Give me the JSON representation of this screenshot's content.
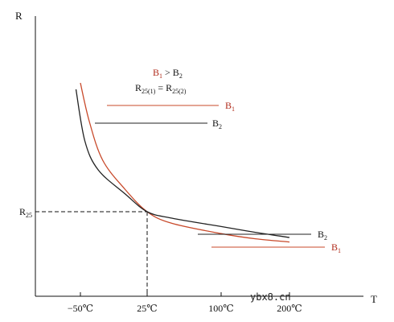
{
  "chart_data": {
    "type": "line",
    "xlabel": "T",
    "ylabel": "R",
    "x_ticks": [
      "−50℃",
      "25℃",
      "100℃",
      "200℃"
    ],
    "y_ticks": [
      "R25"
    ],
    "y_tick_parts": [
      {
        "main": "R",
        "sub": "25"
      }
    ],
    "legend_top": {
      "line1": {
        "left": "B",
        "left_sub": "1",
        "op": " > ",
        "right": "B",
        "right_sub": "2"
      },
      "line2": {
        "left": "R",
        "left_sub": "25(1)",
        "op": " = ",
        "right": "R",
        "right_sub": "25(2)"
      }
    },
    "series": [
      {
        "name": "B1",
        "label_main": "B",
        "label_sub": "1",
        "color": "#c8492a",
        "points": [
          [
            -50,
            2.5
          ],
          [
            -40,
            1.9
          ],
          [
            -25,
            1.3
          ],
          [
            0,
            0.85
          ],
          [
            25,
            0.5
          ],
          [
            50,
            0.32
          ],
          [
            100,
            0.16
          ],
          [
            150,
            0.08
          ],
          [
            200,
            0.03
          ]
        ]
      },
      {
        "name": "B2",
        "label_main": "B",
        "label_sub": "2",
        "color": "#222222",
        "points": [
          [
            -55,
            2.4
          ],
          [
            -45,
            1.6
          ],
          [
            -30,
            1.15
          ],
          [
            0,
            0.78
          ],
          [
            25,
            0.5
          ],
          [
            50,
            0.4
          ],
          [
            100,
            0.27
          ],
          [
            150,
            0.18
          ],
          [
            200,
            0.1
          ]
        ]
      }
    ],
    "reference_lines": {
      "x": 25,
      "y": 0.5
    },
    "colors": {
      "b1": "#c8492a",
      "b2": "#222222",
      "axis": "#111111"
    },
    "watermark": "ybx8.cn"
  }
}
